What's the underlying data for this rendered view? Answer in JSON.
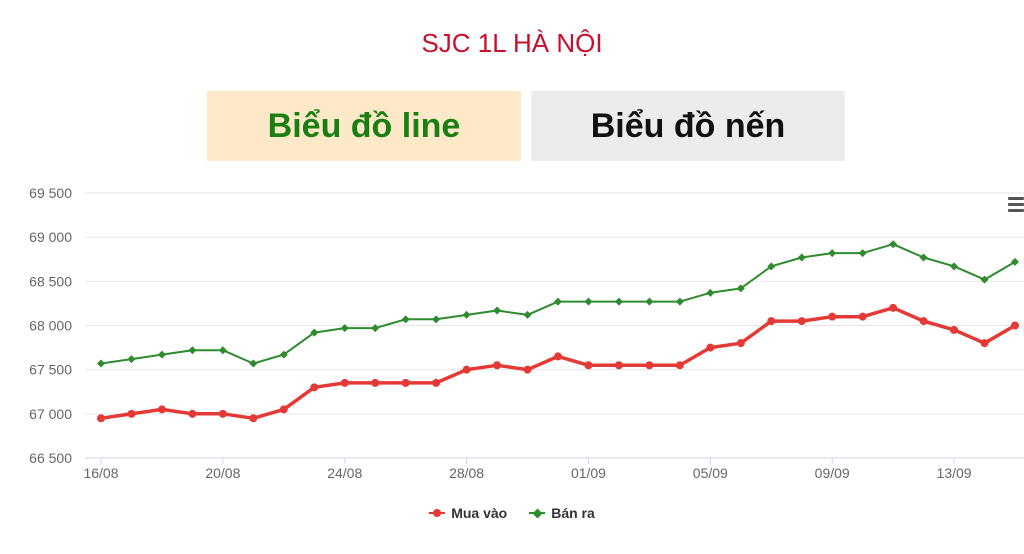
{
  "title": "SJC 1L HÀ NỘI",
  "tabs": {
    "line_label": "Biểu đồ line",
    "candle_label": "Biểu đồ nến"
  },
  "menu_icon": "hamburger-menu-icon",
  "chart_data": {
    "type": "line",
    "y_ticks": [
      "69 500",
      "69 000",
      "68 500",
      "68 000",
      "67 500",
      "67 000",
      "66 500"
    ],
    "ylim": [
      66500,
      69500
    ],
    "x_tick_labels": [
      "16/08",
      "20/08",
      "24/08",
      "28/08",
      "01/09",
      "05/09",
      "09/09",
      "13/09"
    ],
    "x_tick_index": [
      0,
      4,
      8,
      12,
      16,
      20,
      24,
      28
    ],
    "grid": true,
    "legend_placement": "bottom-center",
    "series": [
      {
        "name": "Mua vào",
        "color": "#e53935",
        "marker": "circle",
        "values": [
          66950,
          67000,
          67050,
          67000,
          67000,
          66950,
          67050,
          67300,
          67350,
          67350,
          67350,
          67350,
          67500,
          67550,
          67500,
          67650,
          67550,
          67550,
          67550,
          67550,
          67750,
          67800,
          68050,
          68050,
          68100,
          68100,
          68200,
          68050,
          67950,
          67800,
          68000
        ]
      },
      {
        "name": "Bán ra",
        "color": "#2e8b2e",
        "marker": "diamond",
        "values": [
          67570,
          67620,
          67670,
          67720,
          67720,
          67570,
          67670,
          67920,
          67970,
          67970,
          68070,
          68070,
          68120,
          68170,
          68120,
          68270,
          68270,
          68270,
          68270,
          68270,
          68370,
          68420,
          68670,
          68770,
          68820,
          68820,
          68920,
          68770,
          68670,
          68520,
          68720
        ]
      }
    ]
  }
}
